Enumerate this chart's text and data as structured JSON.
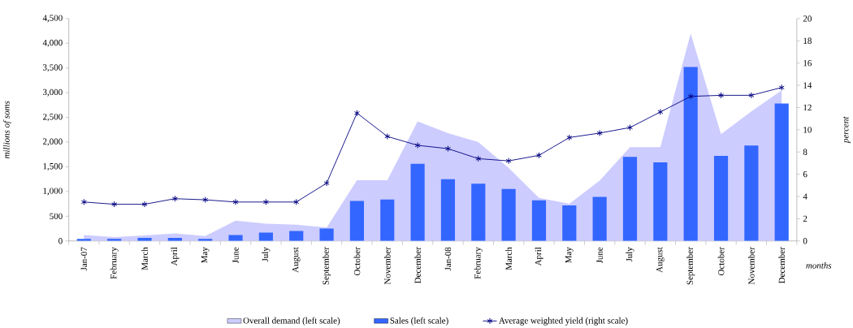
{
  "chart_data": {
    "type": "bar",
    "ylabel": "millions of soms",
    "y2label": "percent",
    "xlabel": "months",
    "categories": [
      "Jan-07",
      "February",
      "March",
      "April",
      "May",
      "June",
      "July",
      "August",
      "September",
      "October",
      "November",
      "December",
      "Jan-08",
      "February",
      "March",
      "April",
      "May",
      "June",
      "July",
      "August",
      "September",
      "October",
      "November",
      "December"
    ],
    "series": [
      {
        "name": "Overall demand (left scale)",
        "type": "area",
        "color": "#ccccff",
        "values": [
          120,
          80,
          110,
          150,
          100,
          410,
          350,
          330,
          270,
          1230,
          1230,
          2420,
          2180,
          2000,
          1480,
          870,
          750,
          1220,
          1900,
          1900,
          4200,
          2160,
          2620,
          3050
        ]
      },
      {
        "name": "Sales (left scale)",
        "color": "#3366ff",
        "values": [
          40,
          40,
          60,
          60,
          40,
          120,
          170,
          200,
          250,
          810,
          840,
          1560,
          1250,
          1160,
          1050,
          820,
          720,
          890,
          1700,
          1590,
          3520,
          1720,
          1930,
          2780
        ]
      },
      {
        "name": "Average weighted yield (right scale)",
        "type": "line",
        "axis": "y2",
        "color": "#000080",
        "marker": "cross",
        "values": [
          3.5,
          3.3,
          3.3,
          3.8,
          3.7,
          3.5,
          3.5,
          3.5,
          5.2,
          11.5,
          9.4,
          8.6,
          8.3,
          7.4,
          7.2,
          7.7,
          9.3,
          9.7,
          10.2,
          11.6,
          13.0,
          13.1,
          13.1,
          13.8
        ]
      }
    ],
    "ylim": [
      0,
      4500
    ],
    "yticks": [
      0,
      500,
      {
        "value": 1000,
        "label": "1,000"
      },
      {
        "value": 1500,
        "label": "1,500"
      },
      {
        "value": 2000,
        "label": "2,000"
      },
      {
        "value": 2500,
        "label": "2,500"
      },
      {
        "value": 3000,
        "label": "3,000"
      },
      {
        "value": 3500,
        "label": "3,500"
      },
      {
        "value": 4000,
        "label": "4,000"
      },
      {
        "value": 4500,
        "label": "4,500"
      }
    ],
    "y2lim": [
      0,
      20
    ],
    "y2ticks": [
      0,
      2,
      4,
      6,
      8,
      10,
      12,
      14,
      16,
      18,
      20
    ],
    "legend": "bottom",
    "grid": false
  }
}
